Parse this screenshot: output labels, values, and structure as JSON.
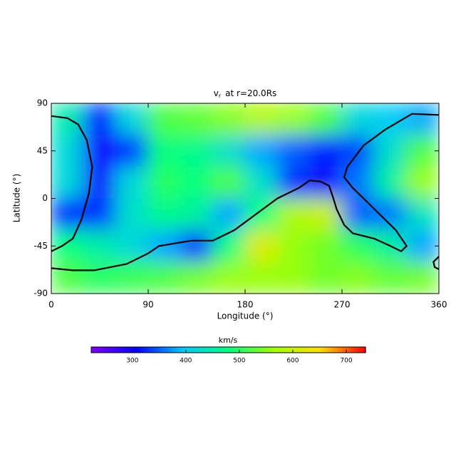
{
  "chart_data": {
    "type": "heatmap",
    "title": {
      "symbol": "v",
      "subscript": "r",
      "text": "at r=20.0Rs"
    },
    "x_label": "Longitude (°)",
    "y_label": "Latitude (°)",
    "x": [
      15,
      45,
      75,
      105,
      135,
      165,
      195,
      225,
      255,
      285,
      315,
      345
    ],
    "y": [
      75,
      45,
      15,
      -15,
      -45,
      -75
    ],
    "z": [
      [
        450,
        320,
        420,
        520,
        530,
        550,
        580,
        560,
        520,
        420,
        400,
        380
      ],
      [
        420,
        300,
        330,
        480,
        470,
        430,
        380,
        350,
        320,
        340,
        430,
        520
      ],
      [
        420,
        300,
        420,
        500,
        480,
        520,
        430,
        330,
        300,
        360,
        460,
        560
      ],
      [
        320,
        330,
        430,
        470,
        460,
        380,
        480,
        580,
        600,
        350,
        360,
        440
      ],
      [
        480,
        450,
        420,
        380,
        330,
        480,
        620,
        560,
        540,
        500,
        460,
        380
      ],
      [
        520,
        500,
        510,
        520,
        540,
        560,
        560,
        560,
        540,
        550,
        530,
        540
      ]
    ],
    "xlim": [
      0,
      360
    ],
    "ylim": [
      -90,
      90
    ],
    "xticks": [
      0,
      90,
      180,
      270,
      360
    ],
    "yticks": [
      90,
      45,
      0,
      -45,
      -90
    ],
    "colormap": [
      "#8000ff",
      "#0000ff",
      "#00c8ff",
      "#00ff80",
      "#a0ff00",
      "#ffe000",
      "#ff0000"
    ],
    "colorbar": {
      "label": "km/s",
      "lim": [
        223,
        736
      ],
      "ticks": [
        300,
        400,
        500,
        600,
        700
      ]
    },
    "contour_color": "#000000",
    "contours": [
      {
        "lon": [
          0,
          15,
          25,
          33,
          38,
          35,
          28,
          20,
          10,
          0
        ],
        "lat": [
          78,
          76,
          70,
          55,
          30,
          5,
          -20,
          -38,
          -45,
          -50
        ]
      },
      {
        "lon": [
          0,
          20,
          40,
          70,
          90,
          100,
          130,
          150,
          170,
          190,
          210,
          230,
          240,
          250,
          258,
          262,
          265,
          272,
          280,
          300,
          315,
          325,
          330,
          320,
          305,
          295,
          280,
          272,
          275,
          290,
          310,
          335,
          360
        ],
        "lat": [
          -66,
          -68,
          -68,
          -62,
          -52,
          -45,
          -40,
          -40,
          -30,
          -15,
          0,
          10,
          17,
          16,
          12,
          0,
          -10,
          -25,
          -33,
          -38,
          -45,
          -50,
          -45,
          -30,
          -15,
          -5,
          10,
          20,
          30,
          50,
          65,
          80,
          79
        ]
      },
      {
        "lon": [
          360,
          355,
          356,
          360
        ],
        "lat": [
          -55,
          -60,
          -65,
          -67
        ]
      }
    ]
  }
}
